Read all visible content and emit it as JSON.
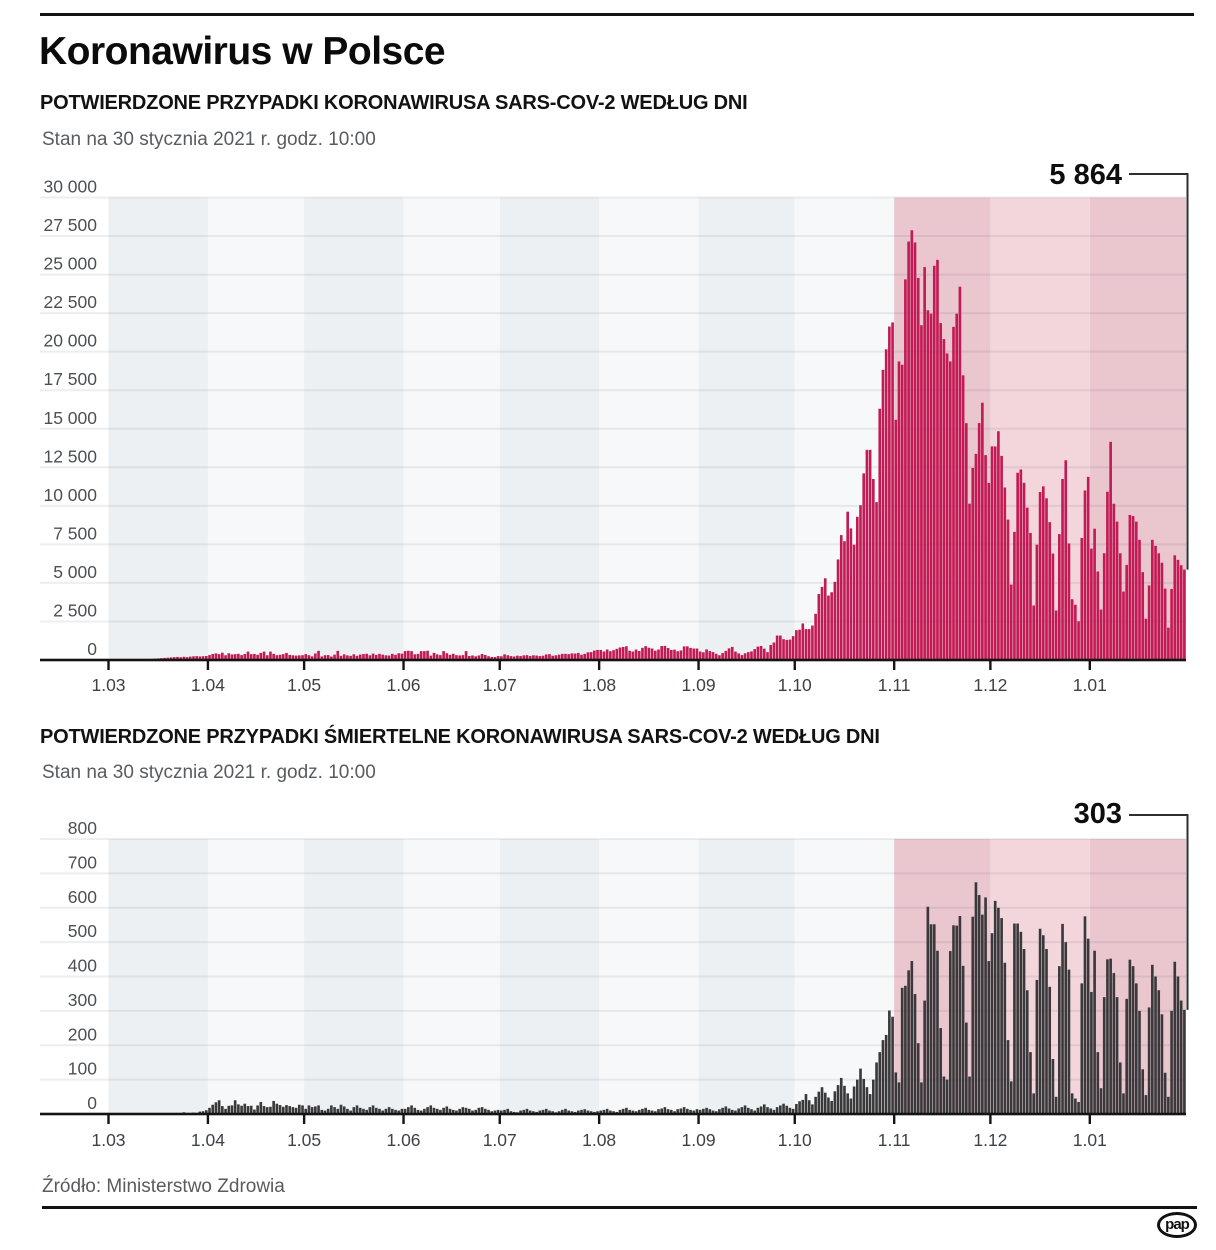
{
  "page": {
    "title": "Koronawirus w Polsce",
    "source": "Źródło: Ministerstwo Zdrowia",
    "logo_text": "pap"
  },
  "palette": {
    "cases_bar": "#c21a54",
    "deaths_bar": "#39393b",
    "band_gray": "#edf0f3",
    "band_white": "#f7f8fa",
    "band_pink": "#eac6cf",
    "band_pink_light": "#f2d6db",
    "grid_line": "rgba(30,40,60,0.08)",
    "axis_line": "#141414",
    "callout_line": "#2e2e2e",
    "y_label_color": "#4c5056",
    "x_label_color": "#3e4247",
    "callout_text_color": "#0e0e0e"
  },
  "chart_data": [
    {
      "type": "bar",
      "name": "cases",
      "title": "POTWIERDZONE PRZYPADKI KORONAWIRUSA SARS-COV-2 WEDŁUG DNI",
      "subtitle": "Stan na 30 stycznia 2021 r. godz. 10:00",
      "callout_label": "5 864",
      "last_value": 5864,
      "bar_color": "cases_bar",
      "ylim": [
        0,
        30000
      ],
      "ystep": 2500,
      "ytick_labels": [
        "0",
        "2 500",
        "5 000",
        "7 500",
        "10 000",
        "12 500",
        "15 000",
        "17 500",
        "20 000",
        "22 500",
        "25 000",
        "27 500",
        "30 000"
      ],
      "xtick_labels": [
        "1.03",
        "1.04",
        "1.05",
        "1.06",
        "1.07",
        "1.08",
        "1.09",
        "1.10",
        "1.11",
        "1.12",
        "1.01"
      ],
      "months": [
        {
          "label": "1.03",
          "days": 31,
          "shade": "band_gray"
        },
        {
          "label": "1.04",
          "days": 30,
          "shade": "band_white"
        },
        {
          "label": "1.05",
          "days": 31,
          "shade": "band_gray"
        },
        {
          "label": "1.06",
          "days": 30,
          "shade": "band_white"
        },
        {
          "label": "1.07",
          "days": 31,
          "shade": "band_gray"
        },
        {
          "label": "1.08",
          "days": 31,
          "shade": "band_white"
        },
        {
          "label": "1.09",
          "days": 30,
          "shade": "band_gray"
        },
        {
          "label": "1.10",
          "days": 31,
          "shade": "band_white"
        },
        {
          "label": "1.11",
          "days": 30,
          "shade": "band_pink"
        },
        {
          "label": "1.12",
          "days": 31,
          "shade": "band_pink_light"
        },
        {
          "label": "1.01",
          "days": 30,
          "shade": "band_pink"
        }
      ],
      "values": [
        1,
        1,
        2,
        5,
        10,
        15,
        20,
        25,
        30,
        35,
        40,
        50,
        65,
        70,
        90,
        105,
        120,
        135,
        150,
        170,
        185,
        200,
        180,
        210,
        190,
        220,
        240,
        250,
        230,
        245,
        260,
        320,
        390,
        430,
        380,
        475,
        310,
        435,
        360,
        380,
        400,
        318,
        390,
        545,
        380,
        390,
        336,
        460,
        545,
        310,
        545,
        400,
        310,
        340,
        380,
        460,
        330,
        305,
        285,
        300,
        310,
        380,
        310,
        235,
        425,
        595,
        230,
        310,
        320,
        225,
        345,
        595,
        270,
        365,
        300,
        270,
        370,
        270,
        355,
        385,
        405,
        305,
        415,
        330,
        400,
        345,
        305,
        290,
        400,
        335,
        435,
        415,
        580,
        600,
        575,
        370,
        395,
        575,
        575,
        600,
        285,
        465,
        365,
        315,
        575,
        440,
        335,
        405,
        315,
        295,
        315,
        575,
        260,
        295,
        240,
        295,
        390,
        325,
        245,
        195,
        195,
        255,
        240,
        370,
        310,
        255,
        230,
        280,
        255,
        300,
        315,
        255,
        305,
        290,
        255,
        280,
        360,
        380,
        275,
        305,
        345,
        400,
        400,
        380,
        430,
        420,
        460,
        340,
        400,
        500,
        510,
        615,
        655,
        655,
        550,
        680,
        570,
        640,
        725,
        810,
        845,
        890,
        600,
        550,
        680,
        585,
        790,
        900,
        795,
        745,
        605,
        680,
        905,
        915,
        780,
        650,
        675,
        570,
        620,
        885,
        885,
        785,
        745,
        745,
        550,
        500,
        690,
        575,
        515,
        405,
        310,
        455,
        590,
        755,
        850,
        545,
        430,
        320,
        435,
        510,
        555,
        710,
        870,
        910,
        735,
        510,
        975,
        1135,
        1585,
        1585,
        1350,
        1305,
        1325,
        1550,
        1935,
        1965,
        2370,
        2005,
        2005,
        2235,
        3000,
        4280,
        4740,
        5300,
        4180,
        4395,
        5070,
        6525,
        8100,
        7705,
        9620,
        8535,
        7480,
        9290,
        10040,
        12105,
        13630,
        13630,
        11740,
        10240,
        16300,
        18820,
        20155,
        21630,
        21895,
        15580,
        19365,
        19150,
        24690,
        27145,
        27875,
        27085,
        24785,
        21715,
        25485,
        22685,
        22465,
        25570,
        25955,
        21855,
        20815,
        19885,
        19365,
        21610,
        22465,
        24215,
        18465,
        15360,
        10140,
        12455,
        13370,
        15370,
        16690,
        13290,
        11485,
        13855,
        13850,
        14840,
        13240,
        11190,
        9105,
        4895,
        8310,
        12145,
        12360,
        11495,
        9885,
        8240,
        3535,
        7480,
        10895,
        11265,
        10490,
        8940,
        6905,
        3210,
        8165,
        11740,
        12955,
        7560,
        3940,
        3585,
        2510,
        7915,
        10995,
        11880,
        7225,
        8515,
        5740,
        3270,
        6925,
        10915,
        14150,
        10135,
        8975,
        6920,
        4440,
        6170,
        9410,
        9335,
        8975,
        7795,
        5700,
        2675,
        4835,
        7795,
        7405,
        6920,
        6310,
        4630,
        2095,
        4605,
        6790,
        6495,
        6145,
        5864
      ]
    },
    {
      "type": "bar",
      "name": "deaths",
      "title": "POTWIERDZONE PRZYPADKI ŚMIERTELNE KORONAWIRUSA SARS-COV-2 WEDŁUG DNI",
      "subtitle": "Stan na 30 stycznia 2021 r. godz. 10:00",
      "callout_label": "303",
      "last_value": 303,
      "bar_color": "deaths_bar",
      "ylim": [
        0,
        800
      ],
      "ystep": 100,
      "ytick_labels": [
        "0",
        "100",
        "200",
        "300",
        "400",
        "500",
        "600",
        "700",
        "800"
      ],
      "xtick_labels": [
        "1.03",
        "1.04",
        "1.05",
        "1.06",
        "1.07",
        "1.08",
        "1.09",
        "1.10",
        "1.11",
        "1.12",
        "1.01"
      ],
      "months": [
        {
          "label": "1.03",
          "days": 31,
          "shade": "band_gray"
        },
        {
          "label": "1.04",
          "days": 30,
          "shade": "band_white"
        },
        {
          "label": "1.05",
          "days": 31,
          "shade": "band_gray"
        },
        {
          "label": "1.06",
          "days": 30,
          "shade": "band_white"
        },
        {
          "label": "1.07",
          "days": 31,
          "shade": "band_gray"
        },
        {
          "label": "1.08",
          "days": 31,
          "shade": "band_white"
        },
        {
          "label": "1.09",
          "days": 30,
          "shade": "band_gray"
        },
        {
          "label": "1.10",
          "days": 31,
          "shade": "band_white"
        },
        {
          "label": "1.11",
          "days": 30,
          "shade": "band_pink"
        },
        {
          "label": "1.12",
          "days": 31,
          "shade": "band_pink_light"
        },
        {
          "label": "1.01",
          "days": 30,
          "shade": "band_pink"
        }
      ],
      "values": [
        0,
        0,
        0,
        0,
        0,
        0,
        0,
        0,
        0,
        0,
        0,
        1,
        1,
        2,
        1,
        1,
        0,
        1,
        0,
        2,
        2,
        0,
        2,
        5,
        2,
        2,
        4,
        3,
        7,
        8,
        11,
        18,
        27,
        34,
        40,
        23,
        15,
        24,
        25,
        40,
        28,
        24,
        30,
        23,
        24,
        13,
        25,
        35,
        23,
        20,
        21,
        38,
        30,
        26,
        21,
        26,
        23,
        20,
        18,
        27,
        25,
        15,
        25,
        20,
        22,
        25,
        12,
        10,
        15,
        25,
        20,
        15,
        27,
        22,
        15,
        10,
        20,
        25,
        18,
        15,
        12,
        20,
        25,
        18,
        15,
        10,
        15,
        20,
        15,
        12,
        10,
        15,
        15,
        20,
        25,
        18,
        12,
        10,
        15,
        20,
        25,
        18,
        15,
        12,
        18,
        22,
        15,
        12,
        10,
        15,
        20,
        18,
        15,
        10,
        12,
        18,
        20,
        15,
        12,
        8,
        10,
        12,
        10,
        12,
        15,
        8,
        6,
        5,
        10,
        12,
        15,
        10,
        8,
        6,
        10,
        12,
        15,
        10,
        8,
        5,
        8,
        12,
        15,
        10,
        8,
        6,
        10,
        12,
        14,
        10,
        8,
        6,
        8,
        10,
        12,
        15,
        10,
        8,
        6,
        12,
        15,
        18,
        12,
        10,
        8,
        12,
        15,
        18,
        12,
        10,
        8,
        14,
        16,
        20,
        14,
        12,
        8,
        14,
        16,
        20,
        15,
        12,
        10,
        14,
        12,
        15,
        18,
        14,
        10,
        8,
        14,
        18,
        22,
        16,
        12,
        10,
        16,
        20,
        25,
        18,
        14,
        10,
        18,
        22,
        28,
        20,
        16,
        12,
        20,
        25,
        30,
        24,
        18,
        15,
        29,
        37,
        41,
        58,
        40,
        28,
        50,
        65,
        78,
        62,
        48,
        38,
        66,
        84,
        105,
        82,
        60,
        45,
        80,
        100,
        132,
        102,
        78,
        58,
        100,
        150,
        180,
        215,
        230,
        301,
        283,
        121,
        92,
        367,
        373,
        418,
        445,
        349,
        206,
        92,
        330,
        603,
        552,
        552,
        475,
        250,
        109,
        100,
        474,
        549,
        548,
        576,
        431,
        266,
        109,
        574,
        674,
        637,
        580,
        630,
        445,
        526,
        620,
        600,
        570,
        440,
        215,
        95,
        554,
        554,
        530,
        480,
        360,
        180,
        60,
        390,
        539,
        520,
        480,
        370,
        160,
        50,
        430,
        553,
        500,
        420,
        60,
        45,
        35,
        380,
        575,
        510,
        355,
        475,
        180,
        75,
        340,
        450,
        452,
        410,
        340,
        150,
        60,
        335,
        449,
        430,
        380,
        300,
        130,
        55,
        310,
        434,
        400,
        360,
        290,
        120,
        50,
        300,
        443,
        400,
        330,
        303
      ]
    }
  ]
}
